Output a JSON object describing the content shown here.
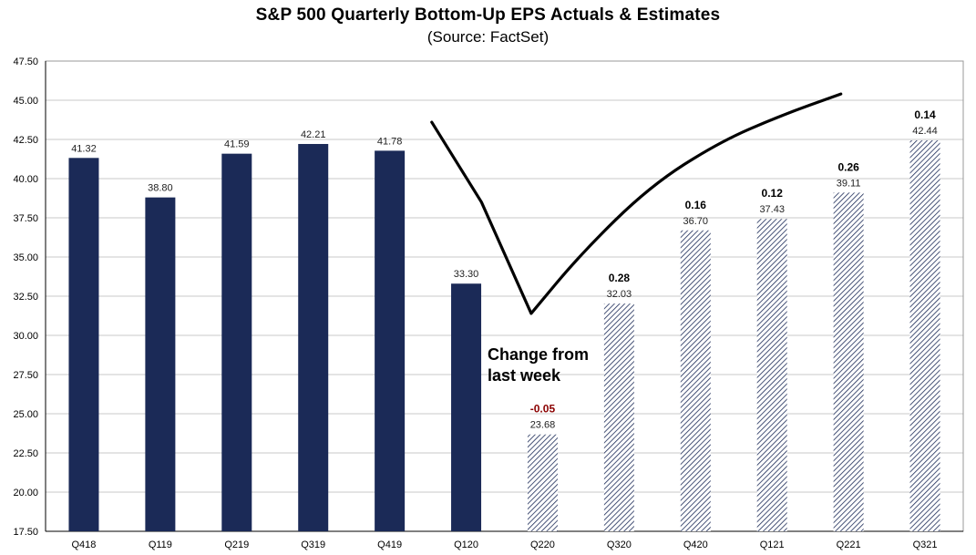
{
  "title": "S&P 500 Quarterly Bottom-Up EPS Actuals & Estimates",
  "subtitle": "(Source: FactSet)",
  "annotation": [
    "Change from",
    "last week"
  ],
  "colors": {
    "actual_bar": "#1b2a57",
    "estimate_hatch": "#1b2a57",
    "grid": "#c8c8c8",
    "trend_line": "#000000",
    "negative_change": "#8b0000",
    "positive_change": "#000000"
  },
  "chart_data": {
    "type": "bar",
    "title": "S&P 500 Quarterly Bottom-Up EPS Actuals & Estimates",
    "subtitle": "(Source: FactSet)",
    "xlabel": "",
    "ylabel": "",
    "ylim": [
      17.5,
      47.5
    ],
    "yticks": [
      "17.50",
      "20.00",
      "22.50",
      "25.00",
      "27.50",
      "30.00",
      "32.50",
      "35.00",
      "37.50",
      "40.00",
      "42.50",
      "45.00",
      "47.50"
    ],
    "grid": true,
    "categories": [
      "Q418",
      "Q119",
      "Q219",
      "Q319",
      "Q419",
      "Q120",
      "Q220",
      "Q320",
      "Q420",
      "Q121",
      "Q221",
      "Q321"
    ],
    "values": [
      41.32,
      38.8,
      41.59,
      42.21,
      41.78,
      33.3,
      23.68,
      32.03,
      36.7,
      37.43,
      39.11,
      42.44
    ],
    "value_labels": [
      "41.32",
      "38.80",
      "41.59",
      "42.21",
      "41.78",
      "33.30",
      "23.68",
      "32.03",
      "36.70",
      "37.43",
      "39.11",
      "42.44"
    ],
    "kind": [
      "actual",
      "actual",
      "actual",
      "actual",
      "actual",
      "actual",
      "estimate",
      "estimate",
      "estimate",
      "estimate",
      "estimate",
      "estimate"
    ],
    "changes_from_last_week": [
      null,
      null,
      null,
      null,
      null,
      null,
      "-0.05",
      "0.28",
      "0.16",
      "0.12",
      "0.26",
      "0.14"
    ],
    "trend_line": {
      "description": "hand-drawn V-shaped recovery line",
      "points": [
        [
          4.55,
          43.6
        ],
        [
          5.2,
          38.5
        ],
        [
          5.85,
          31.4
        ],
        [
          6.5,
          35.2
        ],
        [
          7.4,
          39.5
        ],
        [
          8.3,
          42.3
        ],
        [
          9.1,
          44.0
        ],
        [
          9.9,
          45.4
        ]
      ]
    }
  }
}
